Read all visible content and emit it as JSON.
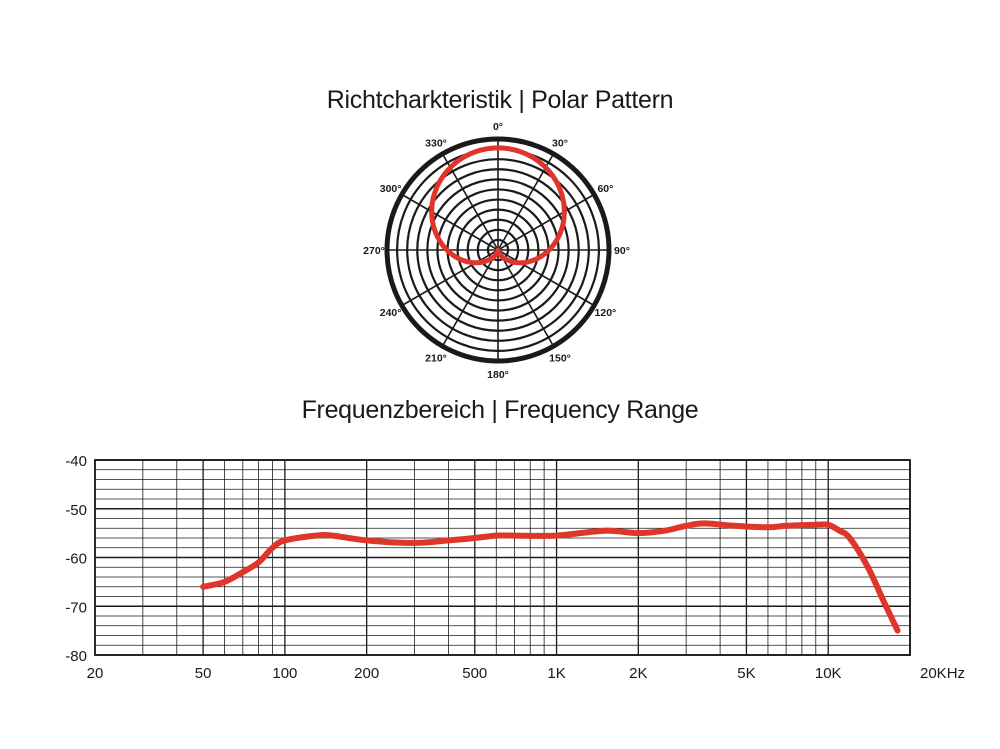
{
  "polar": {
    "title": "Richtcharkteristik | Polar Pattern"
  },
  "frequency": {
    "title": "Frequenzbereich | Frequency Range"
  },
  "chart_data": [
    {
      "type": "polar-line",
      "title": "Richtcharkteristik | Polar Pattern",
      "pattern": "cardioid",
      "angle_labels": [
        "0°",
        "30°",
        "60°",
        "90°",
        "120°",
        "150°",
        "180°",
        "210°",
        "240°",
        "270°",
        "300°",
        "330°"
      ],
      "angles_deg": [
        0,
        30,
        60,
        90,
        120,
        150,
        180,
        210,
        240,
        270,
        300,
        330
      ],
      "relative_response": [
        1.0,
        0.93,
        0.75,
        0.5,
        0.25,
        0.07,
        0.0,
        0.07,
        0.25,
        0.5,
        0.75,
        0.93
      ],
      "series_color": "#e0352b"
    },
    {
      "type": "line",
      "title": "Frequenzbereich | Frequency Range",
      "x_scale": "log",
      "xlim": [
        20,
        20000
      ],
      "ylim": [
        -80,
        -40
      ],
      "x_tick_values": [
        20,
        50,
        100,
        200,
        500,
        1000,
        2000,
        5000,
        10000,
        20000
      ],
      "x_tick_labels": [
        "20",
        "50",
        "100",
        "200",
        "500",
        "1K",
        "2K",
        "5K",
        "10K",
        "20KHz"
      ],
      "y_tick_values": [
        -40,
        -50,
        -60,
        -70,
        -80
      ],
      "y_tick_labels": [
        "-40",
        "-50",
        "-60",
        "-70",
        "-80"
      ],
      "grid": true,
      "series_color": "#e0352b",
      "x": [
        50,
        60,
        70,
        80,
        90,
        100,
        130,
        150,
        200,
        300,
        400,
        500,
        600,
        700,
        1000,
        1500,
        2000,
        2500,
        3000,
        3500,
        4500,
        6000,
        7000,
        9000,
        10000,
        11000,
        12000,
        14000,
        16000,
        18000
      ],
      "y": [
        -66,
        -65,
        -63,
        -61,
        -58,
        -56.5,
        -55.5,
        -55.5,
        -56.5,
        -57,
        -56.5,
        -56,
        -55.5,
        -55.5,
        -55.5,
        -54.5,
        -55,
        -54.5,
        -53.5,
        -53,
        -53.5,
        -53.8,
        -53.5,
        -53.3,
        -53.3,
        -54.5,
        -56,
        -62,
        -69,
        -75
      ]
    }
  ]
}
